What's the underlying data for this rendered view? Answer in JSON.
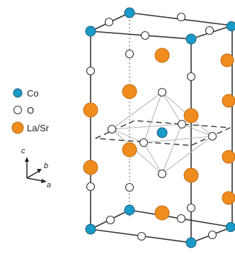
{
  "legend": {
    "items": [
      {
        "key": "co",
        "label": "Co",
        "color": "#1a9ac9"
      },
      {
        "key": "o",
        "label": "O",
        "color": "#ffffff"
      },
      {
        "key": "la",
        "label": "La/Sr",
        "color": "#f08c1e"
      }
    ]
  },
  "axes": {
    "c": "c",
    "b": "b",
    "a": "a"
  },
  "colors": {
    "edge": "#333333",
    "octahedron": "#b8b8b8",
    "atom_outline": "#333333"
  }
}
